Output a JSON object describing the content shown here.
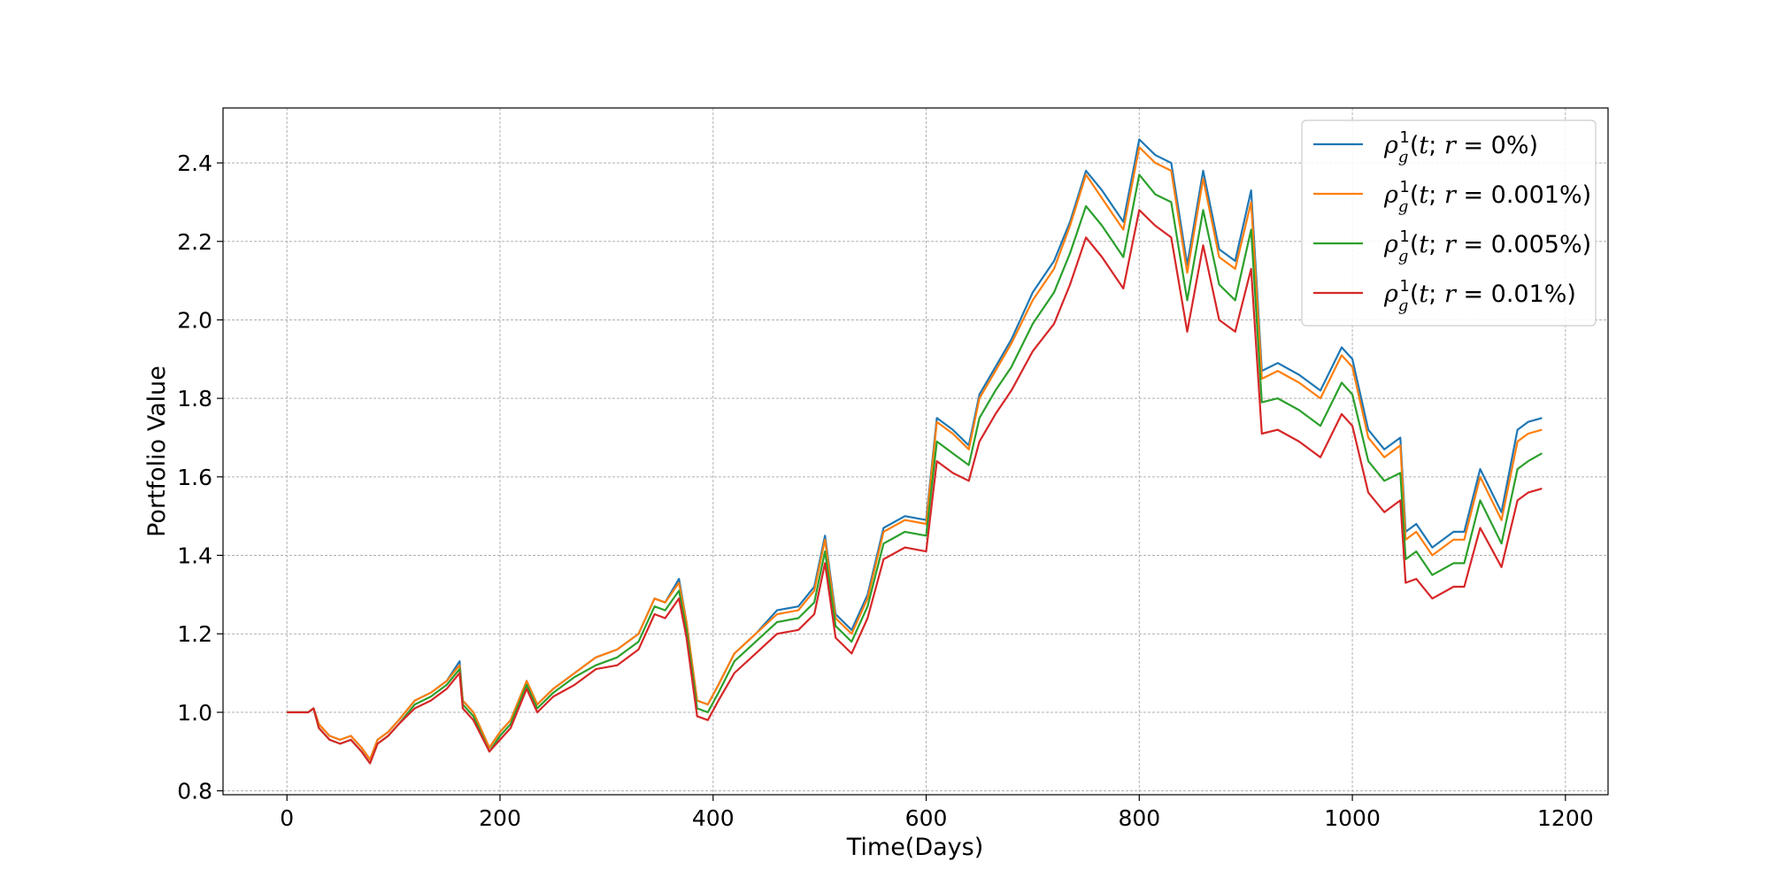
{
  "chart_data": {
    "type": "line",
    "title": "",
    "xlabel": "Time(Days)",
    "ylabel": "Portfolio Value",
    "xlim": [
      -60,
      1240
    ],
    "ylim": [
      0.79,
      2.54
    ],
    "xticks": [
      0,
      200,
      400,
      600,
      800,
      1000,
      1200
    ],
    "yticks": [
      0.8,
      1.0,
      1.2,
      1.4,
      1.6,
      1.8,
      2.0,
      2.2,
      2.4
    ],
    "xtick_labels": [
      "0",
      "200",
      "400",
      "600",
      "800",
      "1000",
      "1200"
    ],
    "ytick_labels": [
      "0.8",
      "1.0",
      "1.2",
      "1.4",
      "1.6",
      "1.8",
      "2.0",
      "2.2",
      "2.4"
    ],
    "grid": true,
    "legend_position": "top-right",
    "x": [
      0,
      10,
      20,
      25,
      30,
      40,
      50,
      60,
      70,
      78,
      85,
      95,
      105,
      120,
      135,
      150,
      162,
      165,
      175,
      190,
      200,
      210,
      225,
      235,
      250,
      270,
      290,
      310,
      330,
      345,
      355,
      368,
      375,
      385,
      395,
      405,
      420,
      440,
      460,
      480,
      495,
      505,
      515,
      530,
      545,
      560,
      580,
      600,
      610,
      625,
      640,
      650,
      665,
      680,
      700,
      720,
      735,
      750,
      765,
      785,
      800,
      815,
      830,
      845,
      860,
      875,
      890,
      905,
      915,
      930,
      950,
      970,
      990,
      1000,
      1015,
      1030,
      1045,
      1050,
      1060,
      1075,
      1095,
      1105,
      1120,
      1140,
      1155,
      1165,
      1178
    ],
    "series": [
      {
        "name": "ρg1(t; r = 0%)",
        "label_parts": [
          "ρ",
          "g",
          "1",
          "(",
          "t",
          "; ",
          "r",
          " = 0%)"
        ],
        "color": "#1f77b4",
        "values": [
          1.0,
          1.0,
          1.0,
          1.01,
          0.97,
          0.94,
          0.93,
          0.94,
          0.91,
          0.88,
          0.93,
          0.95,
          0.98,
          1.03,
          1.05,
          1.08,
          1.13,
          1.03,
          1.0,
          0.91,
          0.95,
          0.98,
          1.08,
          1.02,
          1.06,
          1.1,
          1.14,
          1.16,
          1.2,
          1.29,
          1.28,
          1.34,
          1.23,
          1.03,
          1.02,
          1.07,
          1.15,
          1.2,
          1.26,
          1.27,
          1.32,
          1.45,
          1.25,
          1.21,
          1.3,
          1.47,
          1.5,
          1.49,
          1.75,
          1.72,
          1.68,
          1.81,
          1.88,
          1.95,
          2.07,
          2.15,
          2.25,
          2.38,
          2.33,
          2.25,
          2.46,
          2.42,
          2.4,
          2.14,
          2.38,
          2.18,
          2.15,
          2.33,
          1.87,
          1.89,
          1.86,
          1.82,
          1.93,
          1.9,
          1.72,
          1.67,
          1.7,
          1.46,
          1.48,
          1.42,
          1.46,
          1.46,
          1.62,
          1.51,
          1.72,
          1.74,
          1.75
        ]
      },
      {
        "name": "ρg1(t; r = 0.001%)",
        "label_parts": [
          "ρ",
          "g",
          "1",
          "(",
          "t",
          "; ",
          "r",
          " = 0.001%)"
        ],
        "color": "#ff7f0e",
        "values": [
          1.0,
          1.0,
          1.0,
          1.01,
          0.97,
          0.94,
          0.93,
          0.94,
          0.91,
          0.88,
          0.93,
          0.95,
          0.98,
          1.03,
          1.05,
          1.08,
          1.12,
          1.03,
          1.0,
          0.91,
          0.95,
          0.98,
          1.08,
          1.02,
          1.06,
          1.1,
          1.14,
          1.16,
          1.2,
          1.29,
          1.28,
          1.33,
          1.23,
          1.03,
          1.02,
          1.07,
          1.15,
          1.2,
          1.25,
          1.26,
          1.31,
          1.44,
          1.24,
          1.2,
          1.29,
          1.46,
          1.49,
          1.48,
          1.74,
          1.71,
          1.67,
          1.8,
          1.87,
          1.94,
          2.05,
          2.13,
          2.24,
          2.37,
          2.31,
          2.23,
          2.44,
          2.4,
          2.38,
          2.12,
          2.36,
          2.16,
          2.13,
          2.3,
          1.85,
          1.87,
          1.84,
          1.8,
          1.91,
          1.88,
          1.7,
          1.65,
          1.68,
          1.44,
          1.46,
          1.4,
          1.44,
          1.44,
          1.6,
          1.49,
          1.69,
          1.71,
          1.72
        ]
      },
      {
        "name": "ρg1(t; r = 0.005%)",
        "label_parts": [
          "ρ",
          "g",
          "1",
          "(",
          "t",
          "; ",
          "r",
          " = 0.005%)"
        ],
        "color": "#2ca02c",
        "values": [
          1.0,
          1.0,
          1.0,
          1.01,
          0.96,
          0.93,
          0.92,
          0.93,
          0.9,
          0.87,
          0.92,
          0.94,
          0.97,
          1.02,
          1.04,
          1.07,
          1.11,
          1.02,
          0.99,
          0.9,
          0.94,
          0.97,
          1.07,
          1.01,
          1.05,
          1.09,
          1.12,
          1.14,
          1.18,
          1.27,
          1.26,
          1.31,
          1.21,
          1.01,
          1.0,
          1.05,
          1.13,
          1.18,
          1.23,
          1.24,
          1.28,
          1.41,
          1.22,
          1.18,
          1.27,
          1.43,
          1.46,
          1.45,
          1.69,
          1.66,
          1.63,
          1.75,
          1.82,
          1.88,
          1.99,
          2.07,
          2.17,
          2.29,
          2.24,
          2.16,
          2.37,
          2.32,
          2.3,
          2.05,
          2.28,
          2.09,
          2.05,
          2.23,
          1.79,
          1.8,
          1.77,
          1.73,
          1.84,
          1.81,
          1.64,
          1.59,
          1.61,
          1.39,
          1.41,
          1.35,
          1.38,
          1.38,
          1.54,
          1.43,
          1.62,
          1.64,
          1.66
        ]
      },
      {
        "name": "ρg1(t; r = 0.01%)",
        "label_parts": [
          "ρ",
          "g",
          "1",
          "(",
          "t",
          "; ",
          "r",
          " = 0.01%)"
        ],
        "color": "#d62728",
        "values": [
          1.0,
          1.0,
          1.0,
          1.01,
          0.96,
          0.93,
          0.92,
          0.93,
          0.9,
          0.87,
          0.92,
          0.94,
          0.97,
          1.01,
          1.03,
          1.06,
          1.1,
          1.01,
          0.98,
          0.9,
          0.93,
          0.96,
          1.06,
          1.0,
          1.04,
          1.07,
          1.11,
          1.12,
          1.16,
          1.25,
          1.24,
          1.29,
          1.19,
          0.99,
          0.98,
          1.03,
          1.1,
          1.15,
          1.2,
          1.21,
          1.25,
          1.38,
          1.19,
          1.15,
          1.24,
          1.39,
          1.42,
          1.41,
          1.64,
          1.61,
          1.59,
          1.69,
          1.76,
          1.82,
          1.92,
          1.99,
          2.09,
          2.21,
          2.16,
          2.08,
          2.28,
          2.24,
          2.21,
          1.97,
          2.19,
          2.0,
          1.97,
          2.13,
          1.71,
          1.72,
          1.69,
          1.65,
          1.76,
          1.73,
          1.56,
          1.51,
          1.54,
          1.33,
          1.34,
          1.29,
          1.32,
          1.32,
          1.47,
          1.37,
          1.54,
          1.56,
          1.57
        ]
      }
    ]
  }
}
